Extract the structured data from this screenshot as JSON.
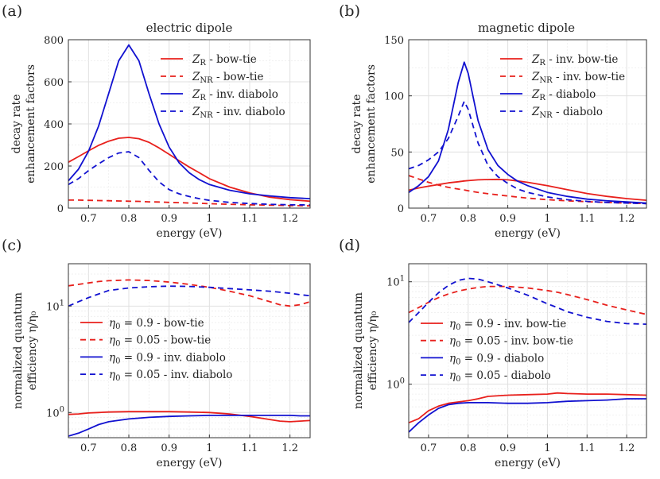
{
  "colors": {
    "red": "#e8201c",
    "blue": "#1111d0"
  },
  "chart_data": [
    {
      "id": "a",
      "type": "line",
      "panel_label": "(a)",
      "title": "electric dipole",
      "xlabel": "energy (eV)",
      "ylabel_lines": [
        "decay rate",
        "enhancement factors"
      ],
      "yscale": "linear",
      "xlim": [
        0.65,
        1.25
      ],
      "ylim": [
        0,
        800
      ],
      "xticks": [
        0.7,
        0.8,
        0.9,
        1.0,
        1.1,
        1.2
      ],
      "xtick_labels": [
        "0.7",
        "0.8",
        "0.9",
        "1",
        "1.1",
        "1.2"
      ],
      "yticks": [
        0,
        200,
        400,
        600,
        800
      ],
      "ytick_labels": [
        "0",
        "200",
        "400",
        "600",
        "800"
      ],
      "legend_position": "top-right",
      "x": [
        0.65,
        0.675,
        0.7,
        0.725,
        0.75,
        0.775,
        0.8,
        0.825,
        0.85,
        0.875,
        0.9,
        0.925,
        0.95,
        0.975,
        1.0,
        1.05,
        1.1,
        1.15,
        1.2,
        1.25
      ],
      "series": [
        {
          "name": "Z_R - bow-tie",
          "legend_main": "Z",
          "legend_sub": "R",
          "legend_rest": " - bow-tie",
          "color": "red",
          "style": "solid",
          "values": [
            218,
            245,
            272,
            298,
            318,
            332,
            336,
            330,
            313,
            286,
            256,
            225,
            195,
            168,
            140,
            100,
            72,
            52,
            40,
            33
          ]
        },
        {
          "name": "Z_NR - bow-tie",
          "legend_main": "Z",
          "legend_sub": "NR",
          "legend_rest": " - bow-tie",
          "color": "red",
          "style": "dashed",
          "values": [
            38,
            38,
            37,
            36,
            35,
            34,
            33,
            32,
            30,
            29,
            27,
            26,
            24,
            23,
            21,
            18,
            16,
            14,
            12,
            11
          ]
        },
        {
          "name": "Z_R - inv. diabolo",
          "legend_main": "Z",
          "legend_sub": "R",
          "legend_rest": " - inv. diabolo",
          "color": "blue",
          "style": "solid",
          "values": [
            130,
            185,
            270,
            390,
            545,
            700,
            775,
            700,
            545,
            400,
            290,
            215,
            168,
            135,
            112,
            85,
            68,
            58,
            50,
            45
          ]
        },
        {
          "name": "Z_NR - inv. diabolo",
          "legend_main": "Z",
          "legend_sub": "NR",
          "legend_rest": " - inv. diabolo",
          "color": "blue",
          "style": "dashed",
          "values": [
            112,
            140,
            178,
            210,
            240,
            262,
            268,
            240,
            180,
            125,
            88,
            68,
            55,
            45,
            37,
            27,
            22,
            18,
            16,
            15
          ]
        }
      ]
    },
    {
      "id": "b",
      "type": "line",
      "panel_label": "(b)",
      "title": "magnetic dipole",
      "xlabel": "energy (eV)",
      "ylabel_lines": [
        "decay rate",
        "enhancement factors"
      ],
      "yscale": "linear",
      "xlim": [
        0.65,
        1.25
      ],
      "ylim": [
        0,
        150
      ],
      "xticks": [
        0.7,
        0.8,
        0.9,
        1.0,
        1.1,
        1.2
      ],
      "xtick_labels": [
        "0.7",
        "0.8",
        "0.9",
        "1",
        "1.1",
        "1.2"
      ],
      "yticks": [
        0,
        50,
        100,
        150
      ],
      "ytick_labels": [
        "0",
        "50",
        "100",
        "150"
      ],
      "legend_position": "top-right",
      "x": [
        0.65,
        0.675,
        0.7,
        0.725,
        0.75,
        0.775,
        0.79,
        0.8,
        0.825,
        0.85,
        0.875,
        0.9,
        0.925,
        0.95,
        1.0,
        1.05,
        1.1,
        1.15,
        1.2,
        1.25
      ],
      "series": [
        {
          "name": "Z_R - inv. bow-tie",
          "legend_main": "Z",
          "legend_sub": "R",
          "legend_rest": " - inv. bow-tie",
          "color": "red",
          "style": "solid",
          "values": [
            16,
            18,
            19.5,
            21,
            22.5,
            23.5,
            24.2,
            24.5,
            25.2,
            25.5,
            25.6,
            25.2,
            24.2,
            23,
            20,
            16.5,
            13,
            10.5,
            8.5,
            7
          ]
        },
        {
          "name": "Z_NR - inv. bow-tie",
          "legend_main": "Z",
          "legend_sub": "NR",
          "legend_rest": " - inv. bow-tie",
          "color": "red",
          "style": "dashed",
          "values": [
            29,
            26,
            23,
            20.5,
            18.5,
            17,
            16.2,
            15.5,
            14,
            12.8,
            11.8,
            10.8,
            9.8,
            8.9,
            7.5,
            6.5,
            5.7,
            5,
            4.5,
            4
          ]
        },
        {
          "name": "Z_R - diabolo",
          "legend_main": "Z",
          "legend_sub": "R",
          "legend_rest": " - diabolo",
          "color": "blue",
          "style": "solid",
          "values": [
            14,
            20,
            28,
            42,
            70,
            112,
            130,
            120,
            78,
            52,
            38,
            30,
            24,
            20,
            14,
            10.5,
            8,
            6.5,
            5.5,
            4.5
          ]
        },
        {
          "name": "Z_NR - diabolo",
          "legend_main": "Z",
          "legend_sub": "NR",
          "legend_rest": " - diabolo",
          "color": "blue",
          "style": "dashed",
          "values": [
            35,
            38,
            43,
            50,
            62,
            82,
            95,
            88,
            58,
            38,
            28,
            22,
            17,
            14,
            10,
            7.5,
            6,
            5,
            4.5,
            4
          ]
        }
      ]
    },
    {
      "id": "c",
      "type": "line",
      "panel_label": "(c)",
      "title": "",
      "xlabel": "energy (eV)",
      "ylabel_lines": [
        "normalized quantum",
        "efficiency η/η₀"
      ],
      "yscale": "log",
      "xlim": [
        0.65,
        1.25
      ],
      "ylim": [
        0.58,
        25
      ],
      "xticks": [
        0.7,
        0.8,
        0.9,
        1.0,
        1.1,
        1.2
      ],
      "xtick_labels": [
        "0.7",
        "0.8",
        "0.9",
        "1",
        "1.1",
        "1.2"
      ],
      "yticks": [
        1,
        10
      ],
      "ytick_labels": [
        "10⁰",
        "10¹"
      ],
      "legend_position": "center-left",
      "x": [
        0.65,
        0.675,
        0.7,
        0.725,
        0.75,
        0.8,
        0.85,
        0.9,
        0.95,
        1.0,
        1.05,
        1.1,
        1.15,
        1.175,
        1.2,
        1.225,
        1.25
      ],
      "series": [
        {
          "name": "η0 = 0.9 - bow-tie",
          "legend_main": "η",
          "legend_sub": "0",
          "legend_rest": " = 0.9 - bow-tie",
          "color": "red",
          "style": "solid",
          "values": [
            0.96,
            0.97,
            0.99,
            1.0,
            1.01,
            1.02,
            1.02,
            1.02,
            1.01,
            1.0,
            0.97,
            0.92,
            0.86,
            0.83,
            0.82,
            0.83,
            0.84
          ]
        },
        {
          "name": "η0 = 0.05 - bow-tie",
          "legend_main": "η",
          "legend_sub": "0",
          "legend_rest": " = 0.05 - bow-tie",
          "color": "red",
          "style": "dashed",
          "values": [
            15.5,
            16.0,
            16.5,
            17.0,
            17.3,
            17.6,
            17.4,
            16.8,
            16.0,
            15.0,
            13.8,
            12.5,
            11.0,
            10.3,
            10.0,
            10.3,
            11.0
          ]
        },
        {
          "name": "η0 = 0.9 - inv. diabolo",
          "legend_main": "η",
          "legend_sub": "0",
          "legend_rest": " = 0.9 - inv. diabolo",
          "color": "blue",
          "style": "solid",
          "values": [
            0.6,
            0.64,
            0.7,
            0.77,
            0.82,
            0.87,
            0.9,
            0.92,
            0.93,
            0.94,
            0.94,
            0.94,
            0.94,
            0.94,
            0.94,
            0.93,
            0.93
          ]
        },
        {
          "name": "η0 = 0.05 - inv. diabolo",
          "legend_main": "η",
          "legend_sub": "0",
          "legend_rest": " = 0.05 - inv. diabolo",
          "color": "blue",
          "style": "dashed",
          "values": [
            10.0,
            11.0,
            12.0,
            13.0,
            14.0,
            14.8,
            15.2,
            15.4,
            15.3,
            15.0,
            14.6,
            14.2,
            13.8,
            13.5,
            13.2,
            12.8,
            12.5
          ]
        }
      ]
    },
    {
      "id": "d",
      "type": "line",
      "panel_label": "(d)",
      "title": "",
      "xlabel": "energy (eV)",
      "ylabel_lines": [
        "normalized quantum",
        "efficiency η/η₀"
      ],
      "yscale": "log",
      "xlim": [
        0.65,
        1.25
      ],
      "ylim": [
        0.3,
        15
      ],
      "xticks": [
        0.7,
        0.8,
        0.9,
        1.0,
        1.1,
        1.2
      ],
      "xtick_labels": [
        "0.7",
        "0.8",
        "0.9",
        "1",
        "1.1",
        "1.2"
      ],
      "yticks": [
        1,
        10
      ],
      "ytick_labels": [
        "10⁰",
        "10¹"
      ],
      "legend_position": "center-left",
      "x": [
        0.65,
        0.675,
        0.7,
        0.725,
        0.75,
        0.775,
        0.8,
        0.825,
        0.85,
        0.9,
        0.95,
        1.0,
        1.025,
        1.05,
        1.1,
        1.15,
        1.2,
        1.25
      ],
      "series": [
        {
          "name": "η0 = 0.9 - inv. bow-tie",
          "legend_main": "η",
          "legend_sub": "0",
          "legend_rest": " = 0.9 - inv. bow-tie",
          "color": "red",
          "style": "solid",
          "values": [
            0.42,
            0.46,
            0.55,
            0.61,
            0.65,
            0.67,
            0.69,
            0.72,
            0.76,
            0.78,
            0.79,
            0.8,
            0.82,
            0.81,
            0.8,
            0.8,
            0.79,
            0.78
          ]
        },
        {
          "name": "η0 = 0.05 - inv. bow-tie",
          "legend_main": "η",
          "legend_sub": "0",
          "legend_rest": " = 0.05 - inv. bow-tie",
          "color": "red",
          "style": "dashed",
          "values": [
            5.0,
            5.6,
            6.3,
            7.0,
            7.6,
            8.1,
            8.5,
            8.8,
            9.0,
            9.0,
            8.7,
            8.2,
            7.9,
            7.5,
            6.7,
            5.9,
            5.3,
            4.8
          ]
        },
        {
          "name": "η0 = 0.9 - diabolo",
          "legend_main": "η",
          "legend_sub": "0",
          "legend_rest": " = 0.9 - diabolo",
          "color": "blue",
          "style": "solid",
          "values": [
            0.34,
            0.42,
            0.5,
            0.58,
            0.63,
            0.65,
            0.66,
            0.66,
            0.66,
            0.65,
            0.65,
            0.66,
            0.67,
            0.68,
            0.69,
            0.7,
            0.72,
            0.72
          ]
        },
        {
          "name": "η0 = 0.05 - diabolo",
          "legend_main": "η",
          "legend_sub": "0",
          "legend_rest": " = 0.05 - diabolo",
          "color": "blue",
          "style": "dashed",
          "values": [
            4.0,
            5.0,
            6.3,
            7.8,
            9.2,
            10.3,
            10.8,
            10.6,
            10.0,
            8.7,
            7.4,
            6.1,
            5.6,
            5.1,
            4.5,
            4.1,
            3.9,
            3.85
          ]
        }
      ]
    }
  ]
}
